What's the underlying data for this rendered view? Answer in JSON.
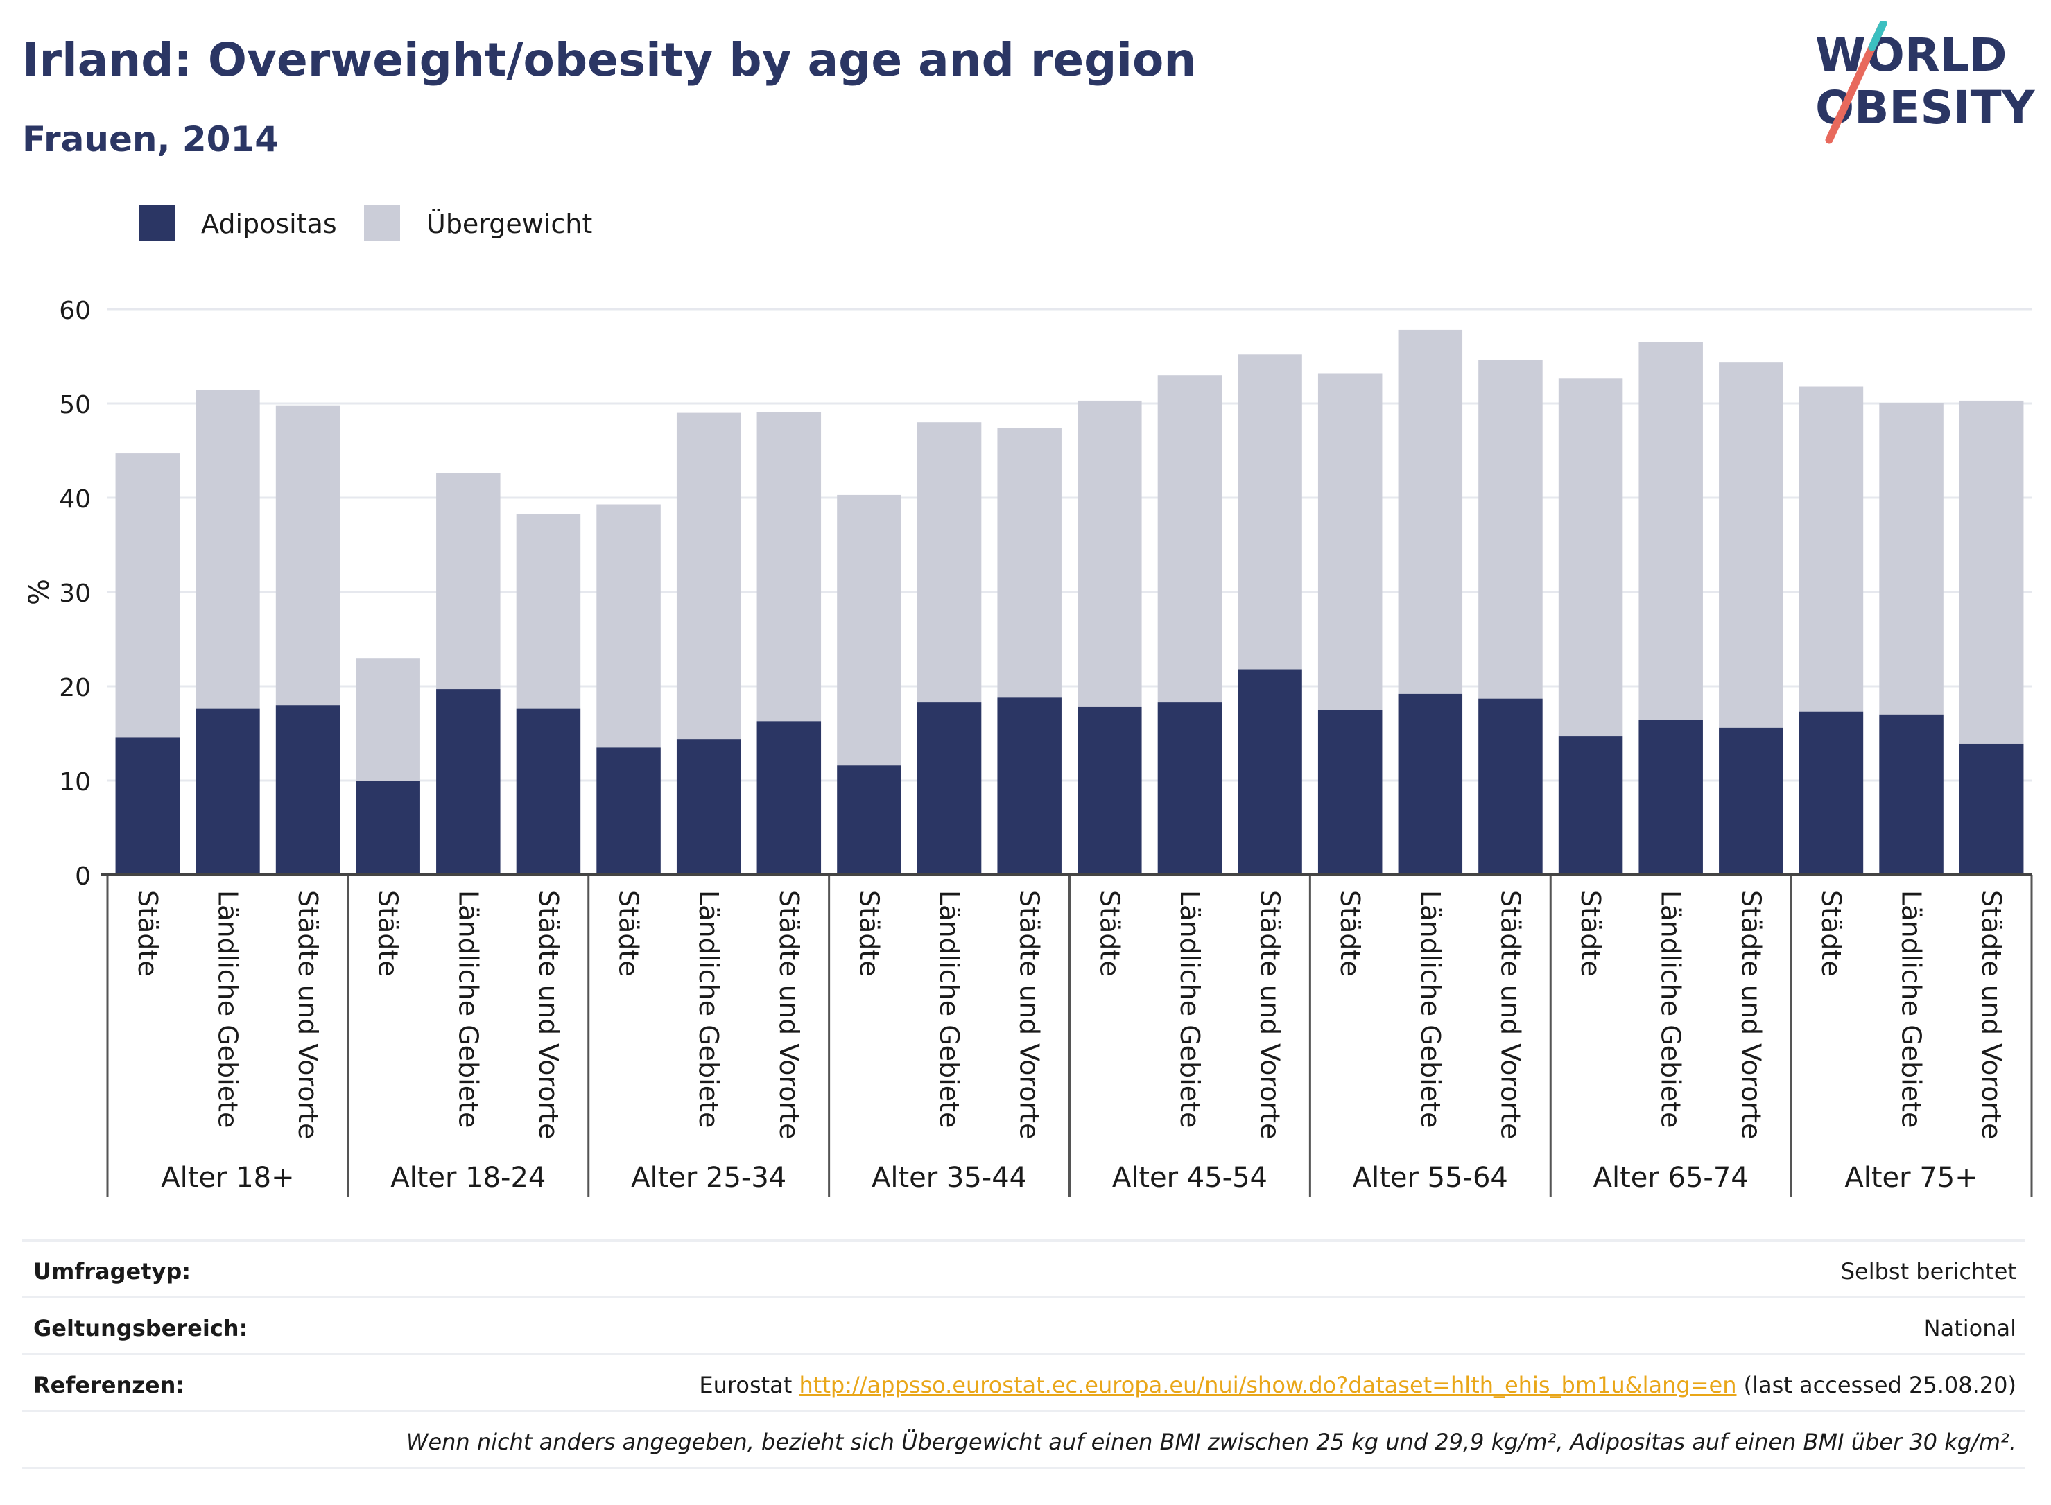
{
  "header": {
    "title": "Irland: Overweight/obesity by age and region",
    "subtitle": "Frauen, 2014"
  },
  "logo": {
    "line1": "WORLD",
    "line2": "OBESITY"
  },
  "colors": {
    "adipositas": "#2b3664",
    "uebergewicht": "#cbcdd8",
    "title": "#2b3664",
    "link": "#e9a618",
    "logo_slash_red": "#e8695c",
    "logo_slash_teal": "#3bbfc0"
  },
  "legend": [
    {
      "label": "Adipositas",
      "color": "#2b3664"
    },
    {
      "label": "Übergewicht",
      "color": "#cbcdd8"
    }
  ],
  "chart_data": {
    "type": "bar",
    "stacked": true,
    "ylabel": "%",
    "ylim": [
      0,
      60
    ],
    "yticks": [
      0,
      10,
      20,
      30,
      40,
      50,
      60
    ],
    "grid": true,
    "legend_position": "top-left",
    "groups": [
      {
        "label": "Alter 18+",
        "categories": [
          "Städte",
          "Ländliche Gebiete",
          "Städte und Vororte"
        ],
        "adipositas": [
          14.6,
          17.6,
          18.0
        ],
        "total": [
          44.7,
          51.4,
          49.8
        ]
      },
      {
        "label": "Alter 18-24",
        "categories": [
          "Städte",
          "Ländliche Gebiete",
          "Städte und Vororte"
        ],
        "adipositas": [
          10.0,
          19.7,
          17.6
        ],
        "total": [
          23.0,
          42.6,
          38.3
        ]
      },
      {
        "label": "Alter 25-34",
        "categories": [
          "Städte",
          "Ländliche Gebiete",
          "Städte und Vororte"
        ],
        "adipositas": [
          13.5,
          14.4,
          16.3
        ],
        "total": [
          39.3,
          49.0,
          49.1
        ]
      },
      {
        "label": "Alter 35-44",
        "categories": [
          "Städte",
          "Ländliche Gebiete",
          "Städte und Vororte"
        ],
        "adipositas": [
          11.6,
          18.3,
          18.8
        ],
        "total": [
          40.3,
          48.0,
          47.4
        ]
      },
      {
        "label": "Alter 45-54",
        "categories": [
          "Städte",
          "Ländliche Gebiete",
          "Städte und Vororte"
        ],
        "adipositas": [
          17.8,
          18.3,
          21.8
        ],
        "total": [
          50.3,
          53.0,
          55.2
        ]
      },
      {
        "label": "Alter 55-64",
        "categories": [
          "Städte",
          "Ländliche Gebiete",
          "Städte und Vororte"
        ],
        "adipositas": [
          17.5,
          19.2,
          18.7
        ],
        "total": [
          53.2,
          57.8,
          54.6
        ]
      },
      {
        "label": "Alter 65-74",
        "categories": [
          "Städte",
          "Ländliche Gebiete",
          "Städte und Vororte"
        ],
        "adipositas": [
          14.7,
          16.4,
          15.6
        ],
        "total": [
          52.7,
          56.5,
          54.4
        ]
      },
      {
        "label": "Alter 75+",
        "categories": [
          "Städte",
          "Ländliche Gebiete",
          "Städte und Vororte"
        ],
        "adipositas": [
          17.3,
          17.0,
          13.9
        ],
        "total": [
          51.8,
          50.0,
          50.3
        ]
      }
    ]
  },
  "meta": {
    "umfragetyp_label": "Umfragetyp:",
    "umfragetyp_value": "Selbst berichtet",
    "geltung_label": "Geltungsbereich:",
    "geltung_value": "National",
    "ref_label": "Referenzen:",
    "ref_source": "Eurostat",
    "ref_link": "http://appsso.eurostat.ec.europa.eu/nui/show.do?dataset=hlth_ehis_bm1u&lang=en",
    "ref_accessed": "(last accessed 25.08.20)",
    "note": "Wenn nicht anders angegeben, bezieht sich Übergewicht auf einen BMI zwischen 25 kg und 29,9 kg/m², Adipositas auf einen BMI über 30 kg/m²."
  }
}
